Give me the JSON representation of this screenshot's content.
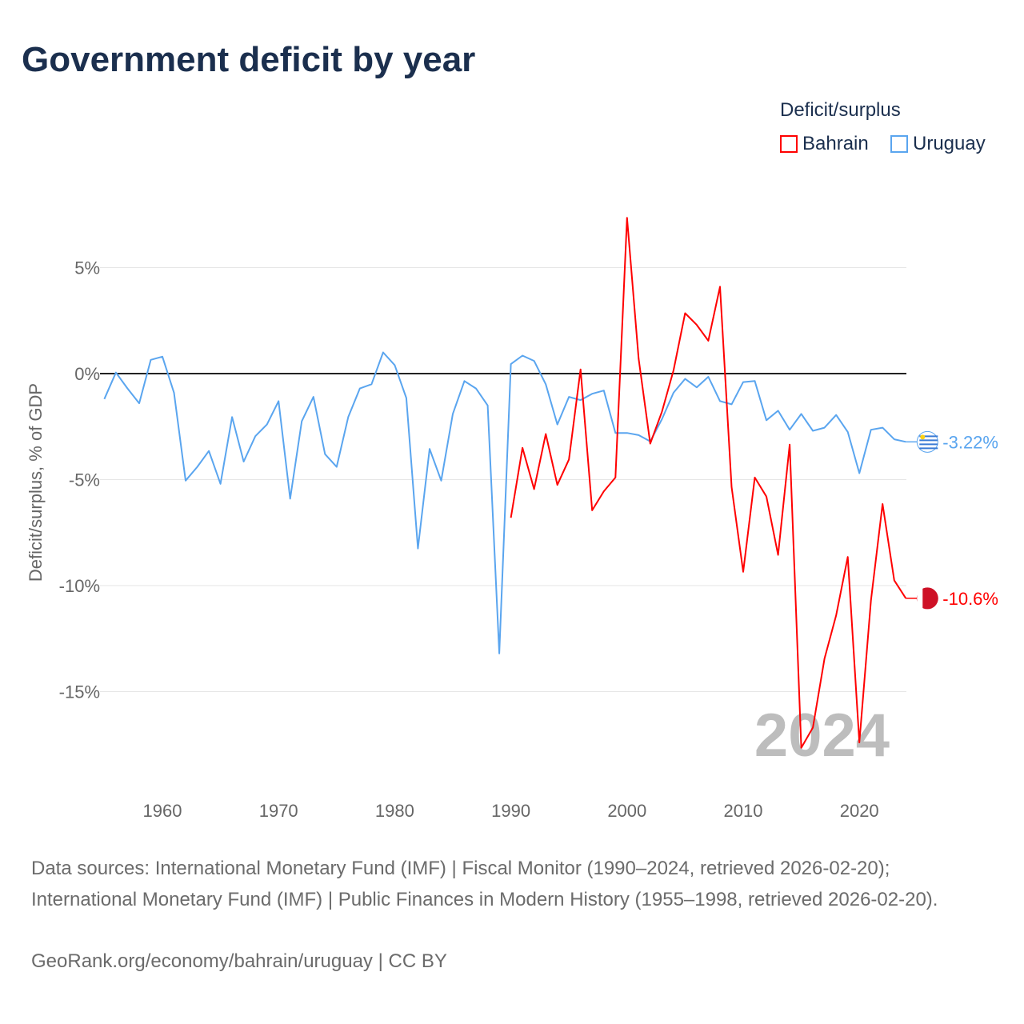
{
  "title": "Government deficit by year",
  "legend": {
    "title": "Deficit/surplus",
    "items": [
      {
        "name": "Bahrain",
        "color": "#ff0000"
      },
      {
        "name": "Uruguay",
        "color": "#5aa5ef"
      }
    ]
  },
  "chart_data": {
    "type": "line",
    "title": "Government deficit by year",
    "xlabel": "",
    "ylabel": "Deficit/surplus, % of GDP",
    "xlim": [
      1955,
      2024
    ],
    "ylim": [
      -18.5,
      8
    ],
    "xticks": [
      1960,
      1970,
      1980,
      1990,
      2000,
      2010,
      2020
    ],
    "yticks": [
      {
        "v": 5,
        "label": "5%"
      },
      {
        "v": 0,
        "label": "0%"
      },
      {
        "v": -5,
        "label": "-5%"
      },
      {
        "v": -10,
        "label": "-10%"
      },
      {
        "v": -15,
        "label": "-15%"
      }
    ],
    "grid": true,
    "year_watermark": "2024",
    "series": [
      {
        "name": "Uruguay",
        "color": "#5aa5ef",
        "end_label": "-3.22%",
        "x_start": 1955,
        "values": [
          -1.2,
          0.05,
          -0.7,
          -1.4,
          0.65,
          0.8,
          -0.9,
          -5.05,
          -4.4,
          -3.65,
          -5.2,
          -2.05,
          -4.15,
          -2.95,
          -2.4,
          -1.3,
          -5.9,
          -2.25,
          -1.1,
          -3.8,
          -4.4,
          -2.05,
          -0.7,
          -0.5,
          1.0,
          0.4,
          -1.15,
          -8.25,
          -3.55,
          -5.05,
          -1.9,
          -0.35,
          -0.7,
          -1.5,
          -13.2,
          0.45,
          0.85,
          0.6,
          -0.5,
          -2.4,
          -1.1,
          -1.25,
          -0.95,
          -0.8,
          -2.8,
          -2.8,
          -2.9,
          -3.2,
          -2.15,
          -0.9,
          -0.25,
          -0.65,
          -0.15,
          -1.3,
          -1.45,
          -0.4,
          -0.35,
          -2.2,
          -1.75,
          -2.65,
          -1.9,
          -2.7,
          -2.55,
          -1.95,
          -2.75,
          -4.7,
          -2.65,
          -2.55,
          -3.1,
          -3.22
        ]
      },
      {
        "name": "Bahrain",
        "color": "#ff0000",
        "end_label": "-10.6%",
        "x_start": 1990,
        "values": [
          -6.8,
          -3.5,
          -5.45,
          -2.85,
          -5.25,
          -4.05,
          0.2,
          -6.45,
          -5.55,
          -4.9,
          7.35,
          0.7,
          -3.3,
          -1.8,
          0.15,
          2.85,
          2.3,
          1.55,
          4.1,
          -5.35,
          -9.35,
          -4.9,
          -5.8,
          -8.55,
          -3.35,
          -17.65,
          -16.7,
          -13.45,
          -11.4,
          -8.65,
          -17.4,
          -10.7,
          -6.15,
          -9.75,
          -10.6
        ]
      }
    ]
  },
  "footer": {
    "sources": "Data sources: International Monetary Fund (IMF) | Fiscal Monitor (1990–2024, retrieved 2026-02-20); International Monetary Fund (IMF) | Public Finances in Modern History (1955–1998, retrieved 2026-02-20).",
    "credit": "GeoRank.org/economy/bahrain/uruguay | CC BY"
  }
}
